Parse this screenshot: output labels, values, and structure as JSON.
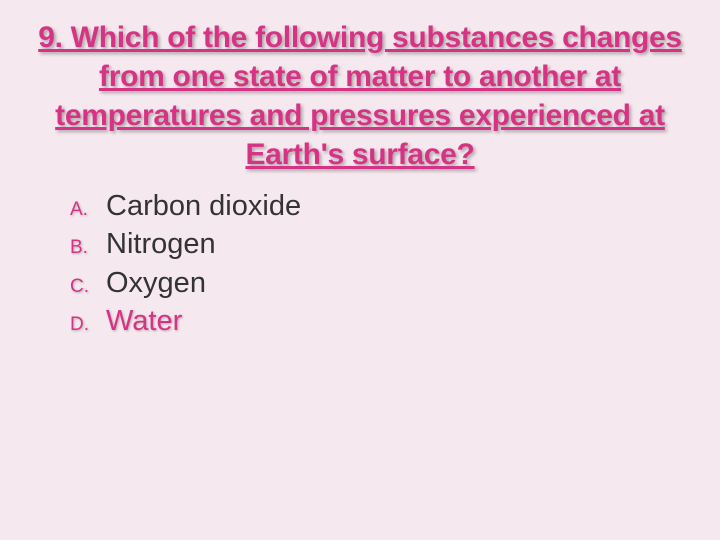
{
  "slide": {
    "background_color": "#f5e8ee",
    "question": {
      "text": "9. Which of the following substances changes from one state of matter to another at temperatures and pressures experienced at Earth's surface?",
      "color": "#d63384",
      "font_size": 30,
      "font_weight": "bold",
      "underline": true,
      "text_align": "center"
    },
    "options": [
      {
        "letter": "A.",
        "text": "Carbon dioxide",
        "text_color": "#333333",
        "letter_color": "#d63384",
        "highlighted": false
      },
      {
        "letter": "B.",
        "text": "Nitrogen",
        "text_color": "#333333",
        "letter_color": "#d63384",
        "highlighted": false
      },
      {
        "letter": "C.",
        "text": "Oxygen",
        "text_color": "#333333",
        "letter_color": "#d63384",
        "highlighted": false
      },
      {
        "letter": "D.",
        "text": "Water",
        "text_color": "#d63384",
        "letter_color": "#d63384",
        "highlighted": true
      }
    ],
    "option_letter_fontsize": 19,
    "option_text_fontsize": 29
  }
}
